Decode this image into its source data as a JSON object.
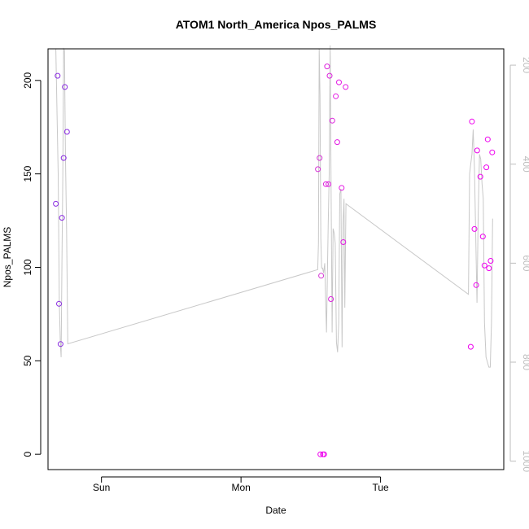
{
  "chart_data": {
    "type": "scatter",
    "title": "ATOM1 North_America Npos_PALMS",
    "xlabel": "Date",
    "ylabel": "Npos_PALMS",
    "x_tick_labels": [
      "Sun",
      "Mon",
      "Tue"
    ],
    "x_tick_positions": [
      0.0,
      1.0,
      2.0
    ],
    "xlim": [
      -0.383,
      2.883
    ],
    "ylim": [
      -8.2,
      216.9
    ],
    "y_ticks": [
      0,
      50,
      100,
      150,
      200
    ],
    "y_right_label": "",
    "y_right_ticks": [
      200,
      400,
      600,
      800,
      1000
    ],
    "y_right_lim": [
      1017,
      167
    ],
    "series": [
      {
        "name": "Npos_PALMS",
        "style": "points",
        "points": [
          {
            "x": -0.327,
            "y": 134,
            "color": "#8a2be2"
          },
          {
            "x": -0.314,
            "y": 202.5,
            "color": "#8a2be2"
          },
          {
            "x": -0.304,
            "y": 80.5,
            "color": "#8a2be2"
          },
          {
            "x": -0.293,
            "y": 59,
            "color": "#8a2be2"
          },
          {
            "x": -0.283,
            "y": 126.5,
            "color": "#8a2be2"
          },
          {
            "x": -0.271,
            "y": 158.5,
            "color": "#8a2be2"
          },
          {
            "x": -0.262,
            "y": 196.5,
            "color": "#8a2be2"
          },
          {
            "x": -0.247,
            "y": 172.5,
            "color": "#8a2be2"
          },
          {
            "x": 1.551,
            "y": 152.5,
            "color": "#d633d6"
          },
          {
            "x": 1.563,
            "y": 158.5,
            "color": "#d633d6"
          },
          {
            "x": 1.569,
            "y": 0,
            "color": "#ee00ee"
          },
          {
            "x": 1.574,
            "y": 95.5,
            "color": "#d633d6"
          },
          {
            "x": 1.587,
            "y": 0,
            "color": "#ee00ee"
          },
          {
            "x": 1.596,
            "y": 0,
            "color": "#ee00ee"
          },
          {
            "x": 1.608,
            "y": 144.5,
            "color": "#dd22dd"
          },
          {
            "x": 1.617,
            "y": 207.5,
            "color": "#dd22dd"
          },
          {
            "x": 1.627,
            "y": 144.5,
            "color": "#dd22dd"
          },
          {
            "x": 1.635,
            "y": 202.5,
            "color": "#dd22dd"
          },
          {
            "x": 1.644,
            "y": 83,
            "color": "#dd22dd"
          },
          {
            "x": 1.654,
            "y": 178.5,
            "color": "#dd22dd"
          },
          {
            "x": 1.679,
            "y": 191.5,
            "color": "#e41ae4"
          },
          {
            "x": 1.69,
            "y": 167,
            "color": "#e41ae4"
          },
          {
            "x": 1.702,
            "y": 199,
            "color": "#e41ae4"
          },
          {
            "x": 1.721,
            "y": 142.5,
            "color": "#e41ae4"
          },
          {
            "x": 1.733,
            "y": 113.5,
            "color": "#e41ae4"
          },
          {
            "x": 1.75,
            "y": 196.5,
            "color": "#e41ae4"
          },
          {
            "x": 2.646,
            "y": 57.5,
            "color": "#ee00ee"
          },
          {
            "x": 2.655,
            "y": 178,
            "color": "#ee00ee"
          },
          {
            "x": 2.673,
            "y": 120.5,
            "color": "#ee00ee"
          },
          {
            "x": 2.685,
            "y": 90.5,
            "color": "#ee00ee"
          },
          {
            "x": 2.692,
            "y": 162.5,
            "color": "#ee00ee"
          },
          {
            "x": 2.715,
            "y": 148.5,
            "color": "#ee00ee"
          },
          {
            "x": 2.733,
            "y": 116.5,
            "color": "#ee00ee"
          },
          {
            "x": 2.745,
            "y": 101,
            "color": "#ee00ee"
          },
          {
            "x": 2.758,
            "y": 153.5,
            "color": "#ee00ee"
          },
          {
            "x": 2.768,
            "y": 168.5,
            "color": "#ee00ee"
          },
          {
            "x": 2.777,
            "y": 99.5,
            "color": "#ee00ee"
          },
          {
            "x": 2.789,
            "y": 103.5,
            "color": "#ee00ee"
          },
          {
            "x": 2.8,
            "y": 161.5,
            "color": "#ee00ee"
          }
        ]
      },
      {
        "name": "right-axis line",
        "style": "line",
        "color": "#c8c8c8",
        "axis": "right",
        "x": [
          -0.327,
          -0.318,
          -0.31,
          -0.302,
          -0.295,
          -0.289,
          -0.283,
          -0.277,
          -0.271,
          -0.265,
          -0.258,
          -0.25,
          -0.241,
          1.55,
          1.555,
          1.56,
          1.566,
          1.572,
          1.578,
          1.585,
          1.592,
          1.6,
          1.607,
          1.613,
          1.619,
          1.625,
          1.632,
          1.639,
          1.646,
          1.653,
          1.66,
          1.668,
          1.675,
          1.684,
          1.692,
          1.7,
          1.708,
          1.716,
          1.724,
          1.731,
          1.738,
          1.744,
          1.752,
          2.63,
          2.638,
          2.646,
          2.655,
          2.664,
          2.673,
          2.682,
          2.691,
          2.7,
          2.709,
          2.718,
          2.727,
          2.736,
          2.745,
          2.756,
          2.766,
          2.776,
          2.786,
          2.795,
          2.803
        ],
        "y": [
          167,
          300,
          420,
          680,
          760,
          790,
          600,
          420,
          167,
          170,
          380,
          530,
          763,
          613,
          560,
          167,
          260,
          550,
          610,
          610,
          620,
          600,
          680,
          740,
          620,
          520,
          420,
          160,
          470,
          740,
          530,
          540,
          560,
          760,
          780,
          720,
          460,
          450,
          770,
          520,
          470,
          690,
          480,
          663,
          420,
          400,
          380,
          330,
          410,
          540,
          680,
          500,
          380,
          390,
          440,
          470,
          720,
          790,
          800,
          810,
          810,
          720,
          510
        ]
      }
    ]
  }
}
